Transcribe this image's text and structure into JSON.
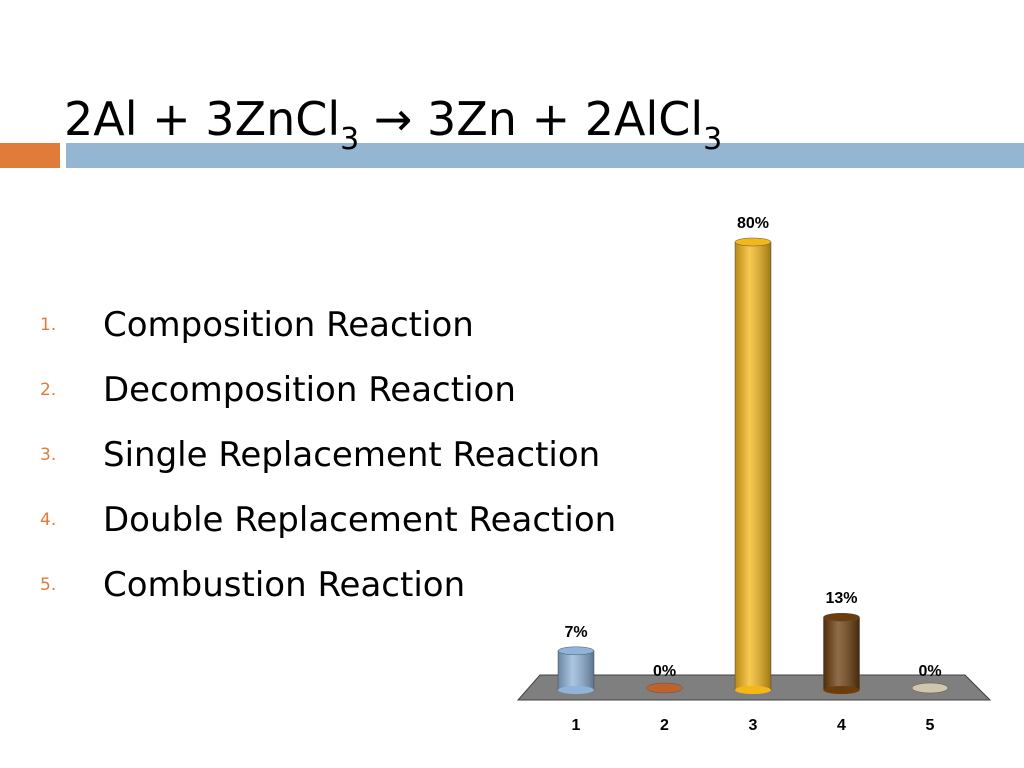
{
  "slide": {
    "title_parts": [
      "2Al + 3ZnCl",
      "3",
      " → 3Zn + 2AlCl",
      "3"
    ],
    "items": [
      {
        "number": "1.",
        "text": "Composition Reaction"
      },
      {
        "number": "2.",
        "text": "Decomposition Reaction"
      },
      {
        "number": "3.",
        "text": "Single Replacement Reaction"
      },
      {
        "number": "4.",
        "text": "Double Replacement Reaction"
      },
      {
        "number": "5.",
        "text": "Combustion Reaction"
      }
    ]
  },
  "chart_data": {
    "type": "bar",
    "categories": [
      "1",
      "2",
      "3",
      "4",
      "5"
    ],
    "values": [
      7,
      0,
      80,
      13,
      0
    ],
    "value_labels": [
      "7%",
      "0%",
      "80%",
      "13%",
      "0%"
    ],
    "colors": [
      "#8fb3d9",
      "#c0622b",
      "#f5b718",
      "#6b3c0c",
      "#cfc6ad"
    ]
  }
}
